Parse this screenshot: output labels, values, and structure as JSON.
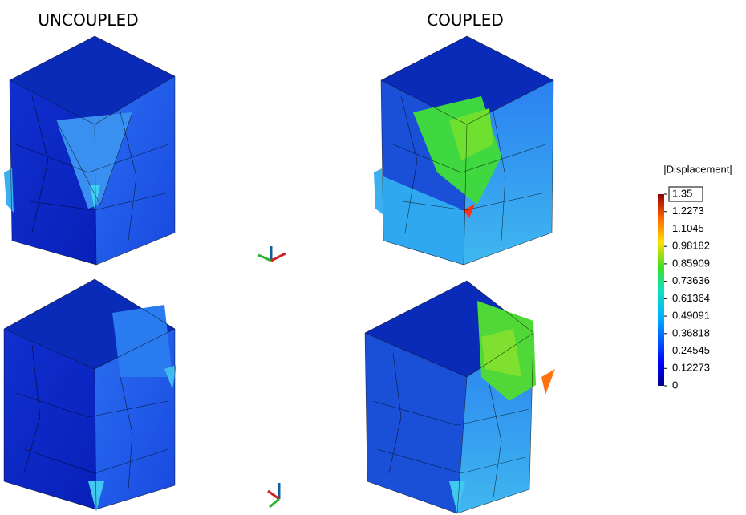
{
  "panels": {
    "left_title": "UNCOUPLED",
    "right_title": "COUPLED"
  },
  "colorbar": {
    "title": "|Displacement|",
    "lim": [
      0,
      1.35
    ],
    "ticks": [
      0,
      0.12273,
      0.24545,
      0.36818,
      0.49091,
      0.61364,
      0.73636,
      0.85909,
      0.98182,
      1.1045,
      1.2273,
      1.35
    ]
  }
}
